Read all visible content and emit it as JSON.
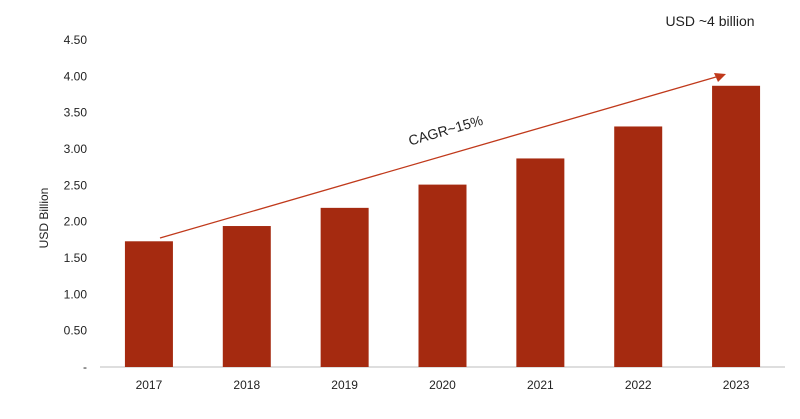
{
  "chart_data": {
    "type": "bar",
    "categories": [
      "2017",
      "2018",
      "2019",
      "2020",
      "2021",
      "2022",
      "2023"
    ],
    "values": [
      1.73,
      1.94,
      2.19,
      2.51,
      2.87,
      3.31,
      3.87
    ],
    "ylabel": "USD Billion",
    "ylim": [
      0,
      4.5
    ],
    "ytick_labels": [
      "-",
      "0.50",
      "1.00",
      "1.50",
      "2.00",
      "2.50",
      "3.00",
      "3.50",
      "4.00",
      "4.50"
    ],
    "grid": false,
    "bar_color": "#A52A10",
    "annotations": {
      "cagr_label": "CAGR~15%",
      "market_size_label": "USD ~4 billion"
    }
  }
}
